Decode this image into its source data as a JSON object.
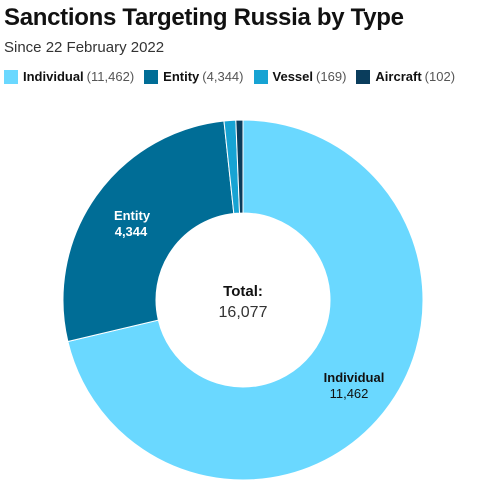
{
  "chart_data": {
    "type": "pie",
    "title": "Sanctions Targeting Russia by Type",
    "subtitle": "Since 22 February 2022",
    "categories": [
      "Individual",
      "Entity",
      "Vessel",
      "Aircraft"
    ],
    "values": [
      11462,
      4344,
      169,
      102
    ],
    "value_labels": [
      "11,462",
      "4,344",
      "169",
      "102"
    ],
    "colors": [
      "#6ad8ff",
      "#006d96",
      "#17a3d3",
      "#0a3d5c"
    ],
    "donut": true,
    "center_label": "Total:",
    "center_value": "16,077",
    "legend_position": "top-left"
  }
}
